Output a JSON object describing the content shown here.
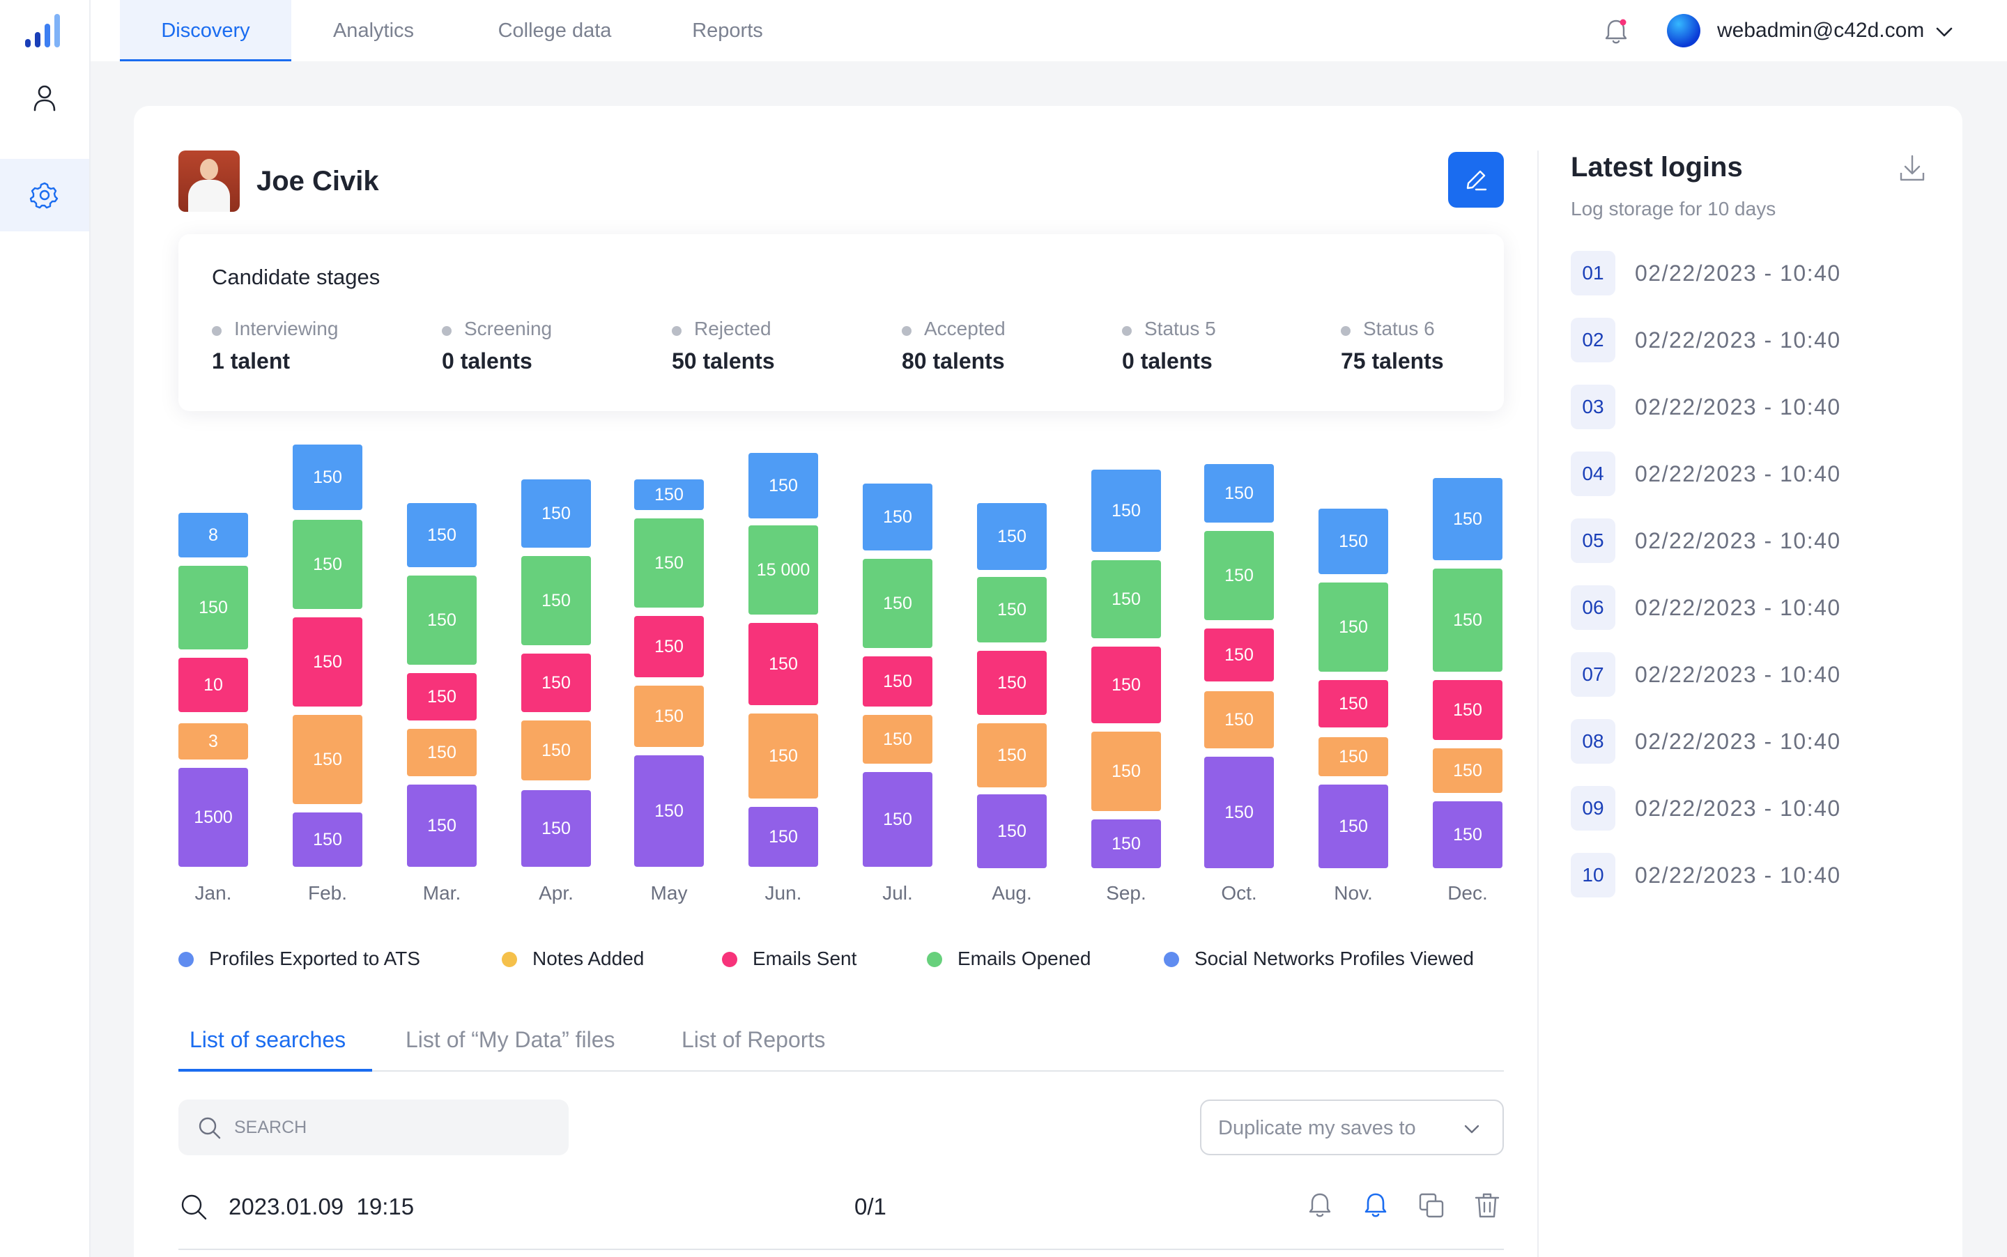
{
  "nav": {
    "tabs": [
      {
        "label": "Discovery"
      },
      {
        "label": "Analytics"
      },
      {
        "label": "College data"
      },
      {
        "label": "Reports"
      }
    ],
    "user_email": "webadmin@c42d.com"
  },
  "profile": {
    "name": "Joe Civik"
  },
  "stages": {
    "title": "Candidate stages",
    "items": [
      {
        "label": "Interviewing",
        "value": "1 talent"
      },
      {
        "label": "Screening",
        "value": "0 talents"
      },
      {
        "label": "Rejected",
        "value": "50 talents"
      },
      {
        "label": "Accepted",
        "value": "80 talents"
      },
      {
        "label": "Status 5",
        "value": "0 talents"
      },
      {
        "label": "Status 6",
        "value": "75 talents"
      }
    ]
  },
  "colors": {
    "blue": "#4f9cf5",
    "green": "#67d07c",
    "pink": "#f7337a",
    "orange": "#f9a760",
    "purple": "#9160e8",
    "legend_notes": "#f5c04a",
    "legend_social": "#5f8cf0",
    "accent": "#1a6cf0"
  },
  "chart_data": {
    "type": "bar",
    "stacked": true,
    "categories": [
      "Jan.",
      "Feb.",
      "Mar.",
      "Apr.",
      "May",
      "Jun.",
      "Jul.",
      "Aug.",
      "Sep.",
      "Oct.",
      "Nov.",
      "Dec."
    ],
    "segment_labels": [
      [
        "8",
        "150",
        "10",
        "3",
        "1500"
      ],
      [
        "150",
        "150",
        "150",
        "150",
        "150"
      ],
      [
        "150",
        "150",
        "150",
        "150",
        "150"
      ],
      [
        "150",
        "150",
        "150",
        "150",
        "150"
      ],
      [
        "150",
        "150",
        "150",
        "150",
        "150"
      ],
      [
        "150",
        "15 000",
        "150",
        "150",
        "150"
      ],
      [
        "150",
        "150",
        "150",
        "150",
        "150"
      ],
      [
        "150",
        "150",
        "150",
        "150",
        "150"
      ],
      [
        "150",
        "150",
        "150",
        "150",
        "150"
      ],
      [
        "150",
        "150",
        "150",
        "150",
        "150"
      ],
      [
        "150",
        "150",
        "150",
        "150",
        "150"
      ],
      [
        "150",
        "150",
        "150",
        "150",
        "150"
      ]
    ],
    "segment_order_top_to_bottom": [
      "blue",
      "green",
      "pink",
      "orange",
      "purple"
    ],
    "legend": [
      {
        "label": "Profiles Exported to ATS",
        "color": "#5f8cf0"
      },
      {
        "label": "Notes Added",
        "color": "#f5c04a"
      },
      {
        "label": "Emails Sent",
        "color": "#f7337a"
      },
      {
        "label": "Emails Opened",
        "color": "#67d07c"
      },
      {
        "label": "Social Networks Profiles Viewed",
        "color": "#5f8cf0"
      }
    ]
  },
  "lists": {
    "tabs": [
      {
        "label": "List of searches"
      },
      {
        "label": "List of “My Data” files"
      },
      {
        "label": "List of Reports"
      }
    ],
    "search_placeholder": "SEARCH",
    "duplicate_label": "Duplicate my saves to",
    "rows": [
      {
        "date": "2023.01.09  19:15",
        "count": "0/1"
      }
    ]
  },
  "logins": {
    "title": "Latest logins",
    "subtitle": "Log storage for 10 days",
    "items": [
      {
        "num": "01",
        "time": "02/22/2023 - 10:40"
      },
      {
        "num": "02",
        "time": "02/22/2023 - 10:40"
      },
      {
        "num": "03",
        "time": "02/22/2023 - 10:40"
      },
      {
        "num": "04",
        "time": "02/22/2023 - 10:40"
      },
      {
        "num": "05",
        "time": "02/22/2023 - 10:40"
      },
      {
        "num": "06",
        "time": "02/22/2023 - 10:40"
      },
      {
        "num": "07",
        "time": "02/22/2023 - 10:40"
      },
      {
        "num": "08",
        "time": "02/22/2023 - 10:40"
      },
      {
        "num": "09",
        "time": "02/22/2023 - 10:40"
      },
      {
        "num": "10",
        "time": "02/22/2023 - 10:40"
      }
    ]
  }
}
